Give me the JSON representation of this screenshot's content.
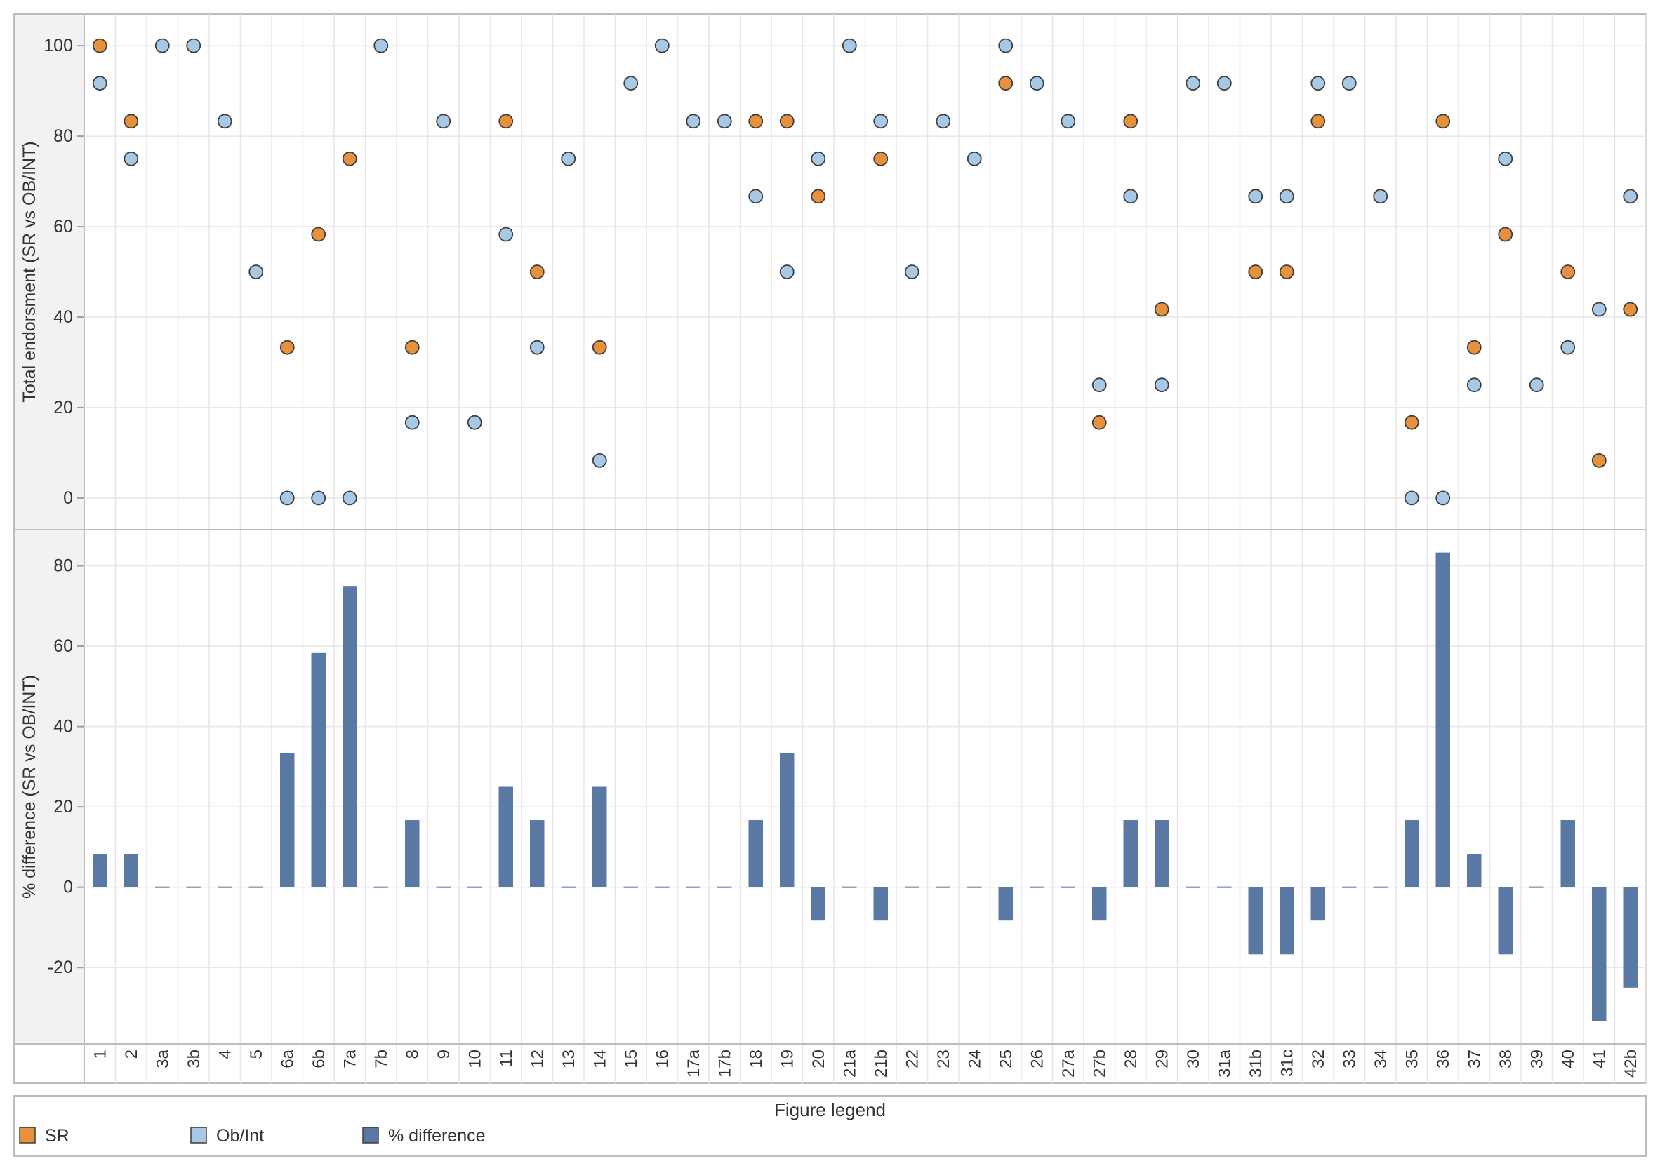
{
  "chart_data": [
    {
      "type": "scatter",
      "ylabel": "Total endorsment (SR vs OB/INT)",
      "ylim": [
        -7,
        107
      ],
      "yticks": [
        0,
        20,
        40,
        60,
        80,
        100
      ],
      "grid": true,
      "categories": [
        "1",
        "2",
        "3a",
        "3b",
        "4",
        "5",
        "6a",
        "6b",
        "7a",
        "7b",
        "8",
        "9",
        "10",
        "11",
        "12",
        "13",
        "14",
        "15",
        "16",
        "17a",
        "17b",
        "18",
        "19",
        "20",
        "21a",
        "21b",
        "22",
        "23",
        "24",
        "25",
        "26",
        "27a",
        "27b",
        "28",
        "29",
        "30",
        "31a",
        "31b",
        "31c",
        "32",
        "33",
        "34",
        "35",
        "36",
        "37",
        "38",
        "39",
        "40",
        "41",
        "42b"
      ],
      "series": [
        {
          "name": "SR",
          "values": [
            100,
            83.3,
            null,
            null,
            null,
            null,
            33.3,
            58.3,
            75,
            null,
            33.3,
            null,
            null,
            83.3,
            50,
            null,
            33.3,
            null,
            null,
            null,
            null,
            83.3,
            83.3,
            66.7,
            null,
            75,
            null,
            null,
            null,
            91.7,
            null,
            null,
            16.7,
            83.3,
            41.7,
            null,
            null,
            50,
            50,
            83.3,
            null,
            null,
            16.7,
            83.3,
            33.3,
            58.3,
            null,
            50,
            8.3,
            41.7
          ]
        },
        {
          "name": "Ob/Int",
          "values": [
            91.7,
            75,
            100,
            100,
            83.3,
            50,
            0,
            0,
            0,
            100,
            16.7,
            83.3,
            16.7,
            58.3,
            33.3,
            75,
            8.3,
            91.7,
            100,
            83.3,
            83.3,
            66.7,
            50,
            75,
            100,
            83.3,
            50,
            83.3,
            75,
            100,
            91.7,
            83.3,
            25,
            66.7,
            25,
            91.7,
            91.7,
            66.7,
            66.7,
            91.7,
            91.7,
            66.7,
            0,
            0,
            25,
            75,
            25,
            33.3,
            41.7,
            66.7
          ]
        }
      ]
    },
    {
      "type": "bar",
      "ylabel": "% difference (SR vs OB/INT)",
      "xlabel": "",
      "ylim": [
        -39,
        89
      ],
      "yticks": [
        -20,
        0,
        20,
        40,
        60,
        80
      ],
      "grid": true,
      "categories": [
        "1",
        "2",
        "3a",
        "3b",
        "4",
        "5",
        "6a",
        "6b",
        "7a",
        "7b",
        "8",
        "9",
        "10",
        "11",
        "12",
        "13",
        "14",
        "15",
        "16",
        "17a",
        "17b",
        "18",
        "19",
        "20",
        "21a",
        "21b",
        "22",
        "23",
        "24",
        "25",
        "26",
        "27a",
        "27b",
        "28",
        "29",
        "30",
        "31a",
        "31b",
        "31c",
        "32",
        "33",
        "34",
        "35",
        "36",
        "37",
        "38",
        "39",
        "40",
        "41",
        "42b"
      ],
      "series": [
        {
          "name": "% difference",
          "values": [
            8.3,
            8.3,
            0,
            0,
            0,
            0,
            33.3,
            58.3,
            75,
            0,
            16.7,
            0,
            0,
            25,
            16.7,
            0,
            25,
            0,
            0,
            0,
            0,
            16.7,
            33.3,
            -8.3,
            0,
            -8.3,
            0,
            0,
            0,
            -8.3,
            0,
            0,
            -8.3,
            16.7,
            16.7,
            0,
            0,
            -16.7,
            -16.7,
            -8.3,
            0,
            0,
            16.7,
            83.3,
            8.3,
            -16.7,
            0,
            16.7,
            -33.3,
            -25
          ]
        }
      ]
    }
  ],
  "legend": {
    "title": "Figure legend",
    "items": [
      {
        "label": "SR",
        "color": "#e8913c"
      },
      {
        "label": "Ob/Int",
        "color": "#a7c9e6"
      },
      {
        "label": "% difference",
        "color": "#5978a3"
      }
    ]
  },
  "colors": {
    "sr": "#e8913c",
    "obint": "#a7c9e6",
    "diff": "#5978a3",
    "panel_bg": "#f2f2f2",
    "grid": "#e6e6e6",
    "border": "#bdbdbd"
  }
}
